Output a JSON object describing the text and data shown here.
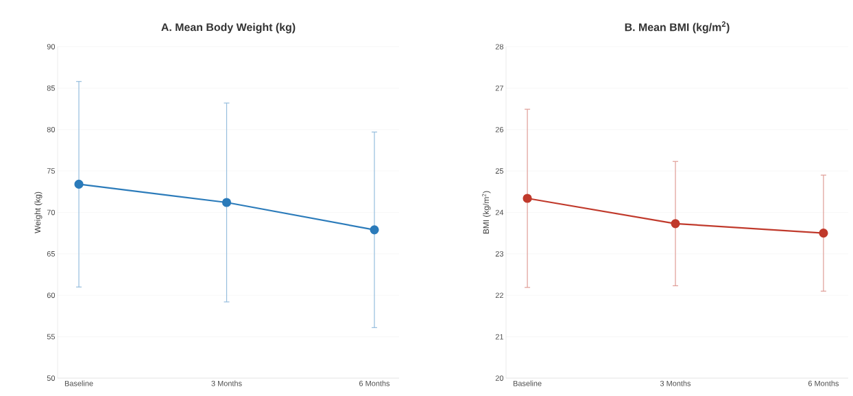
{
  "chart_data": [
    {
      "type": "line",
      "title": "A. Mean Body Weight (kg)",
      "ylabel": "Weight (kg)",
      "categories": [
        "Baseline",
        "3 Months",
        "6 Months"
      ],
      "series": [
        {
          "color": "#2b7bba",
          "values": [
            73.4,
            71.2,
            67.9
          ],
          "errors": [
            12.4,
            12.0,
            11.8
          ]
        }
      ],
      "ylim": [
        50,
        90
      ],
      "yticks": [
        50,
        55,
        60,
        65,
        70,
        75,
        80,
        85,
        90
      ],
      "grid": "y",
      "marker": "circle",
      "line_style": "solid"
    },
    {
      "type": "line",
      "title": "B. Mean BMI (kg/m$^{2}$)",
      "ylabel": "BMI (kg/m$^{2}$)",
      "categories": [
        "Baseline",
        "3 Months",
        "6 Months"
      ],
      "series": [
        {
          "color": "#c0392b",
          "values": [
            24.34,
            23.73,
            23.5
          ],
          "errors": [
            2.15,
            1.5,
            1.4
          ]
        }
      ],
      "ylim": [
        20,
        28
      ],
      "yticks": [
        20,
        21,
        22,
        23,
        24,
        25,
        26,
        27,
        28
      ],
      "grid": "y",
      "marker": "circle",
      "line_style": "solid"
    }
  ]
}
